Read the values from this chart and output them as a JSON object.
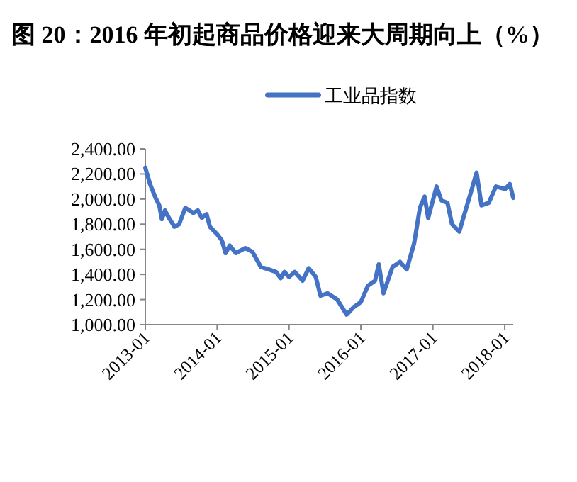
{
  "chart_data": {
    "type": "line",
    "title": "图 20：2016 年初起商品价格迎来大周期向上（%）",
    "legend": "top",
    "marker": "none",
    "line_style": "solid",
    "xlim": [
      "2013-01-01",
      "2018-02-13"
    ],
    "xticks": [
      "2013-01",
      "2014-01",
      "2015-01",
      "2016-01",
      "2017-01",
      "2018-01"
    ],
    "ylim": [
      1000,
      2400
    ],
    "yticks": [
      {
        "value": 1000,
        "label": "1,000.00"
      },
      {
        "value": 1200,
        "label": "1,200.00"
      },
      {
        "value": 1400,
        "label": "1,400.00"
      },
      {
        "value": 1600,
        "label": "1,600.00"
      },
      {
        "value": 1800,
        "label": "1,800.00"
      },
      {
        "value": 2000,
        "label": "2,000.00"
      },
      {
        "value": 2200,
        "label": "2,200.00"
      },
      {
        "value": 2400,
        "label": "2,400.00"
      }
    ],
    "series": [
      {
        "name": "工业品指数",
        "color": "#4472c4",
        "x": [
          "2013-01-01",
          "2013-01-25",
          "2013-02-22",
          "2013-03-13",
          "2013-03-26",
          "2013-04-11",
          "2013-05-01",
          "2013-05-29",
          "2013-06-22",
          "2013-07-23",
          "2013-09-02",
          "2013-09-25",
          "2013-10-15",
          "2013-11-08",
          "2013-11-25",
          "2014-01-01",
          "2014-01-25",
          "2014-02-13",
          "2014-03-06",
          "2014-04-06",
          "2014-05-24",
          "2014-06-29",
          "2014-08-11",
          "2014-09-21",
          "2014-10-27",
          "2014-11-20",
          "2014-12-09",
          "2015-01-01",
          "2015-01-30",
          "2015-03-11",
          "2015-04-11",
          "2015-05-17",
          "2015-06-10",
          "2015-07-16",
          "2015-09-03",
          "2015-10-21",
          "2015-11-26",
          "2016-01-01",
          "2016-02-06",
          "2016-03-13",
          "2016-04-01",
          "2016-04-25",
          "2016-06-10",
          "2016-07-18",
          "2016-08-21",
          "2016-09-28",
          "2016-10-27",
          "2016-11-20",
          "2016-12-08",
          "2017-01-20",
          "2017-02-13",
          "2017-03-16",
          "2017-04-08",
          "2017-05-15",
          "2017-06-12",
          "2017-07-18",
          "2017-08-11",
          "2017-09-05",
          "2017-10-12",
          "2017-11-17",
          "2018-01-03",
          "2018-01-27",
          "2018-02-13"
        ],
        "values": [
          2250,
          2120,
          2010,
          1950,
          1840,
          1910,
          1850,
          1780,
          1800,
          1930,
          1890,
          1910,
          1850,
          1880,
          1780,
          1720,
          1670,
          1570,
          1630,
          1570,
          1610,
          1580,
          1460,
          1440,
          1420,
          1370,
          1420,
          1380,
          1420,
          1350,
          1450,
          1380,
          1230,
          1250,
          1200,
          1080,
          1140,
          1180,
          1310,
          1350,
          1480,
          1250,
          1460,
          1500,
          1440,
          1650,
          1930,
          2020,
          1850,
          2100,
          1990,
          1970,
          1800,
          1740,
          1890,
          2080,
          2210,
          1950,
          1970,
          2100,
          2080,
          2120,
          2010
        ]
      }
    ]
  }
}
